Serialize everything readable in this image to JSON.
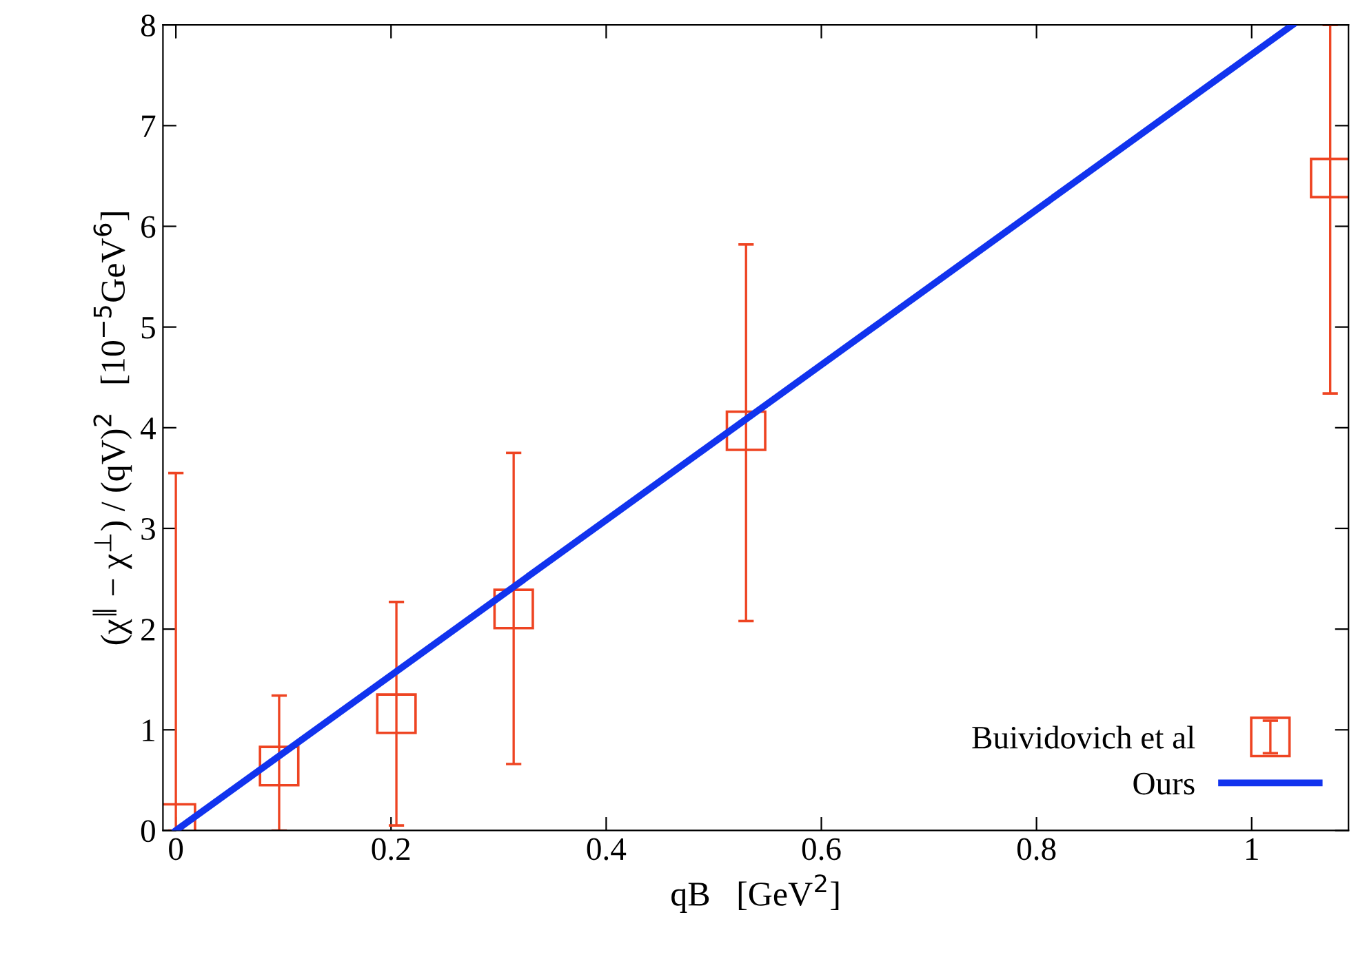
{
  "chart_data": {
    "type": "scatter",
    "xlabel": "qB   [GeV$^{2}$]",
    "ylabel": "(χ$^{∥}$ − χ$^{⊥}$) / (qV)$^{2}$   [10$^{−5}$GeV$^{6}$]",
    "xlim": [
      -0.012,
      1.09
    ],
    "ylim": [
      0,
      8
    ],
    "xticks": [
      0,
      0.2,
      0.4,
      0.6,
      0.8,
      1
    ],
    "yticks": [
      0,
      1,
      2,
      3,
      4,
      5,
      6,
      7,
      8
    ],
    "grid": false,
    "legend": "bottom right",
    "series": [
      {
        "name": "Buividovich et al",
        "marker": "square",
        "color": "#ee4422",
        "x": [
          0,
          0.096,
          0.205,
          0.314,
          0.53,
          1.073
        ],
        "values": [
          0.07,
          0.64,
          1.16,
          2.2,
          3.97,
          6.48
        ],
        "errors": [
          [
            0,
            3.55
          ],
          [
            0,
            1.34
          ],
          [
            0.05,
            2.27
          ],
          [
            0.66,
            3.75
          ],
          [
            2.08,
            5.82
          ],
          [
            4.34,
            8
          ]
        ]
      },
      {
        "name": "Ours",
        "type": "line",
        "marker": "none",
        "line_style": "solid",
        "color": "#1133ee",
        "x": [
          0,
          1.038
        ],
        "values": [
          0,
          8
        ]
      }
    ]
  }
}
